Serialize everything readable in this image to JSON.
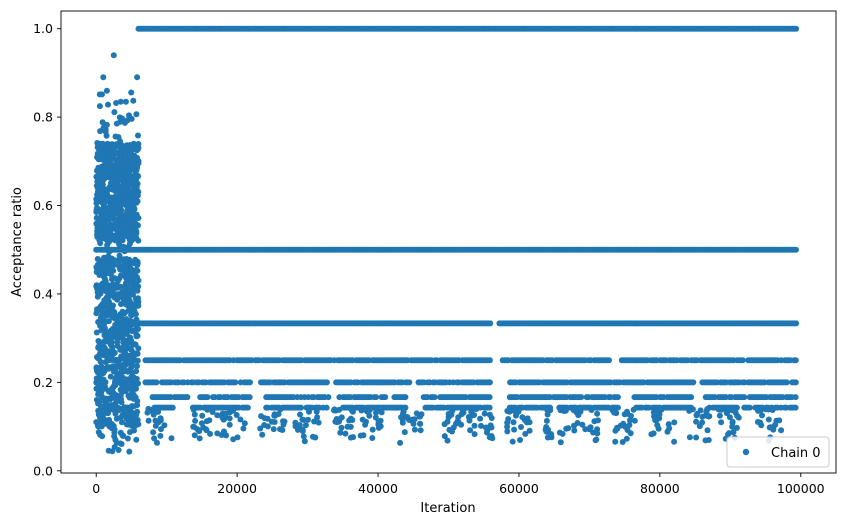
{
  "chart_data": {
    "type": "scatter",
    "xlabel": "Iteration",
    "ylabel": "Acceptance ratio",
    "xlim": [
      -5000,
      105000
    ],
    "ylim": [
      -0.005,
      1.04
    ],
    "x_ticks": [
      0,
      20000,
      40000,
      60000,
      80000,
      100000
    ],
    "x_tick_labels": [
      "0",
      "20000",
      "40000",
      "60000",
      "80000",
      "100000"
    ],
    "y_ticks": [
      0.0,
      0.2,
      0.4,
      0.6,
      0.8,
      1.0
    ],
    "y_tick_labels": [
      "0.0",
      "0.2",
      "0.4",
      "0.6",
      "0.8",
      "1.0"
    ],
    "grid": false,
    "legend": {
      "position": "lower-right",
      "entries": [
        "Chain 0"
      ]
    },
    "series": [
      {
        "name": "Chain 0",
        "color": "#1f77b4",
        "marker": "circle",
        "burn_in": {
          "x_range": [
            0,
            6000
          ],
          "y_range": [
            0.04,
            0.94
          ],
          "outliers": [
            [
              2500,
              0.94
            ],
            [
              1000,
              0.89
            ],
            [
              5800,
              0.89
            ]
          ]
        },
        "levels": [
          {
            "value": 1.0,
            "x_range": [
              6000,
              99500
            ]
          },
          {
            "value": 0.5,
            "x_range": [
              0,
              99500
            ]
          },
          {
            "value": 0.3333,
            "x_range": [
              6000,
              99500
            ],
            "gaps": [
              [
                56000,
                57000
              ]
            ]
          },
          {
            "value": 0.25,
            "x_range": [
              7000,
              99500
            ],
            "gaps": [
              [
                56000,
                57500
              ],
              [
                73000,
                74500
              ]
            ]
          },
          {
            "value": 0.2,
            "x_range": [
              7000,
              99500
            ],
            "gaps": [
              [
                22000,
                23000
              ],
              [
                33000,
                34000
              ],
              [
                44500,
                45500
              ],
              [
                56000,
                58500
              ],
              [
                85000,
                86000
              ]
            ]
          },
          {
            "value": 0.1667,
            "x_range": [
              8000,
              99500
            ],
            "gaps": [
              [
                13000,
                14500
              ],
              [
                22000,
                24000
              ],
              [
                33000,
                34500
              ],
              [
                44000,
                46000
              ],
              [
                56000,
                58500
              ],
              [
                74500,
                76000
              ],
              [
                84500,
                86500
              ]
            ]
          },
          {
            "value": 0.1429,
            "x_range": [
              8000,
              99500
            ],
            "gaps": [
              [
                11000,
                13500
              ],
              [
                22000,
                24000
              ],
              [
                33000,
                35000
              ],
              [
                44000,
                46500
              ],
              [
                56000,
                58500
              ],
              [
                74500,
                76500
              ],
              [
                84500,
                87000
              ]
            ]
          }
        ],
        "scatter_below": {
          "y_range": [
            0.04,
            0.14
          ],
          "clusters_x": [
            9000,
            15500,
            19500,
            25000,
            30000,
            35000,
            39000,
            44500,
            50500,
            54500,
            60000,
            65500,
            69500,
            75000,
            80500,
            85500,
            90000,
            95500
          ]
        }
      }
    ]
  }
}
